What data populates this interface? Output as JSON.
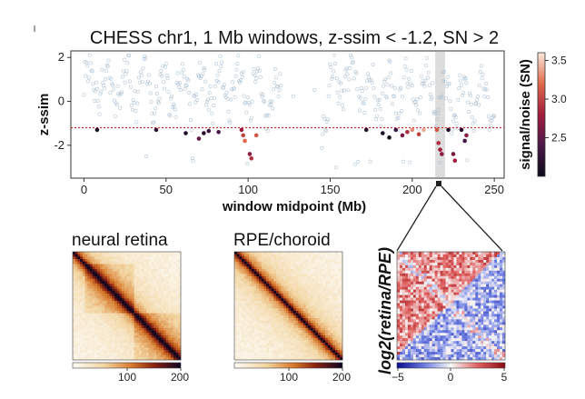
{
  "chart_data": {
    "type": "scatter",
    "title": "CHESS chr1, 1 Mb windows, z-ssim < -1.2, SN > 2",
    "xlabel": "window midpoint (Mb)",
    "ylabel": "z-ssim",
    "xlim": [
      -8,
      256
    ],
    "ylim": [
      -3.5,
      2.3
    ],
    "x_ticks": [
      0,
      50,
      100,
      150,
      200,
      250
    ],
    "y_ticks": [
      -2,
      0,
      2
    ],
    "threshold": -1.2,
    "colorbar": {
      "label": "signal/noise (SN)",
      "ticks": [
        2.5,
        3.0,
        3.5
      ],
      "range": [
        2.0,
        3.6
      ]
    },
    "highlight_region_mb": [
      214,
      220
    ],
    "segments": [
      [
        0,
        40,
        0.7
      ],
      [
        40,
        75,
        0.5
      ],
      [
        75,
        100,
        0.6
      ],
      [
        100,
        125,
        0.3
      ],
      [
        125,
        150,
        -0.6
      ],
      [
        150,
        170,
        0.9
      ],
      [
        170,
        215,
        0.4
      ],
      [
        215,
        250,
        0.1
      ]
    ],
    "gaps": [
      [
        120,
        145
      ]
    ],
    "significant_points": [
      {
        "x": 8,
        "y": -1.3,
        "sn": 2.1
      },
      {
        "x": 44,
        "y": -1.3,
        "sn": 2.2
      },
      {
        "x": 62,
        "y": -1.45,
        "sn": 2.1
      },
      {
        "x": 70,
        "y": -1.7,
        "sn": 2.5
      },
      {
        "x": 73,
        "y": -1.45,
        "sn": 2.2
      },
      {
        "x": 76,
        "y": -1.35,
        "sn": 2.3
      },
      {
        "x": 82,
        "y": -1.4,
        "sn": 2.4
      },
      {
        "x": 96,
        "y": -1.3,
        "sn": 2.8
      },
      {
        "x": 97,
        "y": -1.55,
        "sn": 3.0
      },
      {
        "x": 98,
        "y": -1.8,
        "sn": 3.2
      },
      {
        "x": 101,
        "y": -2.4,
        "sn": 2.7
      },
      {
        "x": 102,
        "y": -2.6,
        "sn": 2.9
      },
      {
        "x": 105,
        "y": -1.55,
        "sn": 3.1
      },
      {
        "x": 172,
        "y": -1.3,
        "sn": 2.2
      },
      {
        "x": 182,
        "y": -1.45,
        "sn": 2.1
      },
      {
        "x": 186,
        "y": -1.65,
        "sn": 2.0
      },
      {
        "x": 190,
        "y": -1.3,
        "sn": 2.3
      },
      {
        "x": 194,
        "y": -1.55,
        "sn": 2.6
      },
      {
        "x": 197,
        "y": -1.4,
        "sn": 2.9
      },
      {
        "x": 200,
        "y": -1.3,
        "sn": 3.3
      },
      {
        "x": 204,
        "y": -1.5,
        "sn": 3.0
      },
      {
        "x": 207,
        "y": -1.3,
        "sn": 3.4
      },
      {
        "x": 215,
        "y": -1.3,
        "sn": 3.1
      },
      {
        "x": 216,
        "y": -1.9,
        "sn": 2.9
      },
      {
        "x": 217,
        "y": -2.2,
        "sn": 2.8
      },
      {
        "x": 218,
        "y": -2.4,
        "sn": 2.7
      },
      {
        "x": 222,
        "y": -1.3,
        "sn": 2.1
      },
      {
        "x": 225,
        "y": -2.4,
        "sn": 2.6
      },
      {
        "x": 226,
        "y": -2.7,
        "sn": 2.8
      },
      {
        "x": 230,
        "y": -1.3,
        "sn": 2.2
      },
      {
        "x": 232,
        "y": -1.8,
        "sn": 2.4
      },
      {
        "x": 233,
        "y": -1.55,
        "sn": 2.7
      }
    ]
  },
  "panels": {
    "retina": {
      "title": "neural retina",
      "cbar_ticks": [
        "100",
        "200"
      ]
    },
    "rpe": {
      "title": "RPE/choroid",
      "cbar_ticks": [
        "100",
        "200"
      ]
    },
    "ratio": {
      "ylabel": "log2(retina/RPE)",
      "cbar_ticks": [
        "−5",
        "0",
        "5"
      ]
    }
  },
  "colors": {
    "grey_points": "#a8bdd0",
    "threshold_line": "#d03030",
    "highlight": "#dcdcdc"
  }
}
